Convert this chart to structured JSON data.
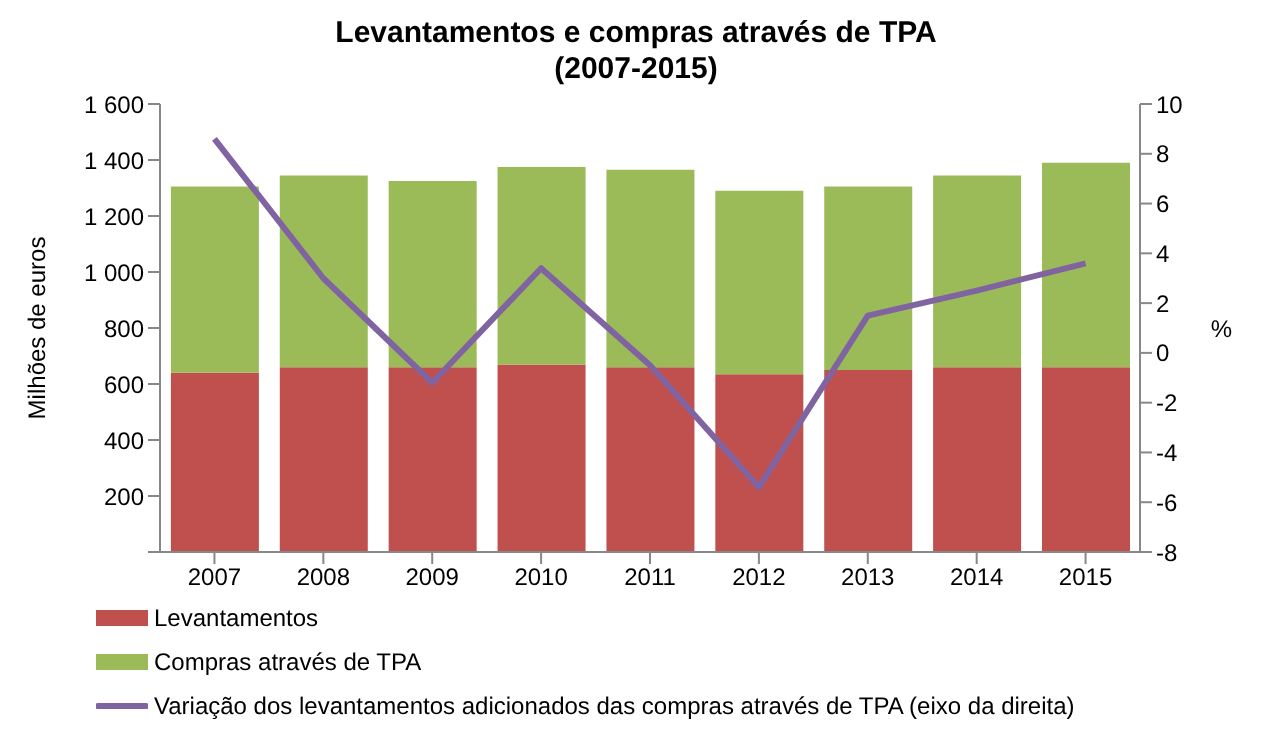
{
  "chart_data": {
    "type": "bar",
    "stacked": true,
    "title": "Levantamentos e compras através de TPA\n(2007-2015)",
    "ylabel": "Milhões de euros",
    "y2label": "%",
    "categories": [
      "2007",
      "2008",
      "2009",
      "2010",
      "2011",
      "2012",
      "2013",
      "2014",
      "2015"
    ],
    "series": [
      {
        "name": "Levantamentos",
        "color": "#c0504d",
        "values": [
          640,
          660,
          660,
          670,
          660,
          635,
          650,
          660,
          660
        ]
      },
      {
        "name": "Compras através de TPA",
        "color": "#9bbb59",
        "values": [
          665,
          685,
          665,
          705,
          705,
          655,
          655,
          685,
          730
        ]
      },
      {
        "name": "Variação dos levantamentos adicionados das compras através de TPA (eixo da direita)",
        "type": "line",
        "axis": "y2",
        "color": "#8064a2",
        "values": [
          8.6,
          3.0,
          -1.2,
          3.4,
          -0.5,
          -5.4,
          1.5,
          2.5,
          3.6
        ]
      }
    ],
    "ylim": [
      0,
      1600
    ],
    "yticks": [
      {
        "value": 0,
        "label": null
      },
      {
        "value": 200,
        "label": "200"
      },
      {
        "value": 400,
        "label": "400"
      },
      {
        "value": 600,
        "label": "600"
      },
      {
        "value": 800,
        "label": "800"
      },
      {
        "value": 1000,
        "label": "1 000"
      },
      {
        "value": 1200,
        "label": "1 200"
      },
      {
        "value": 1400,
        "label": "1 400"
      },
      {
        "value": 1600,
        "label": "1 600"
      }
    ],
    "y2lim": [
      -8,
      10
    ],
    "y2ticks": [
      -8,
      -6,
      -4,
      -2,
      0,
      2,
      4,
      6,
      8,
      10
    ],
    "grid": false,
    "legend": "bottom",
    "marker": "none"
  }
}
